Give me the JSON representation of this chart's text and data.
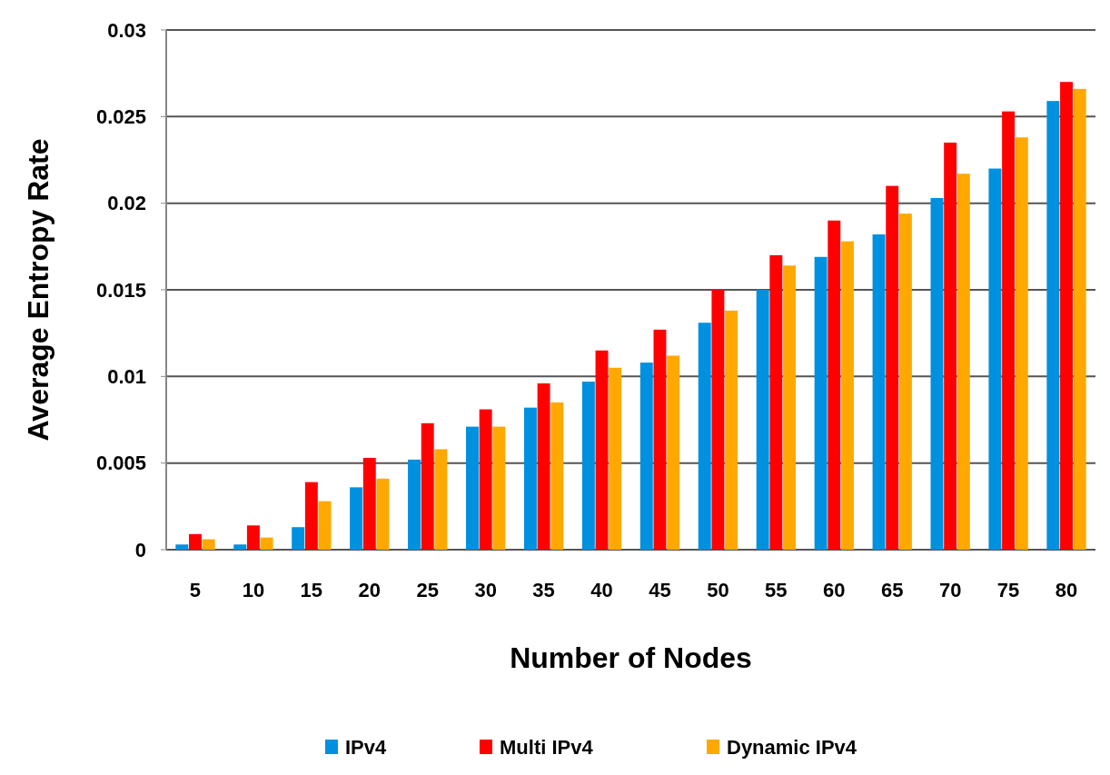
{
  "chart_data": {
    "type": "bar",
    "xlabel": "Number of Nodes",
    "ylabel": "Average Entropy Rate",
    "categories": [
      "5",
      "10",
      "15",
      "20",
      "25",
      "30",
      "35",
      "40",
      "45",
      "50",
      "55",
      "60",
      "65",
      "70",
      "75",
      "80"
    ],
    "series": [
      {
        "name": "IPv4",
        "color": "#0090e0",
        "values": [
          0.0003,
          0.0003,
          0.0013,
          0.0036,
          0.0052,
          0.0071,
          0.0082,
          0.0097,
          0.0108,
          0.0131,
          0.015,
          0.0169,
          0.0182,
          0.0203,
          0.022,
          0.0259
        ]
      },
      {
        "name": "Multi IPv4",
        "color": "#ff0000",
        "values": [
          0.0009,
          0.0014,
          0.0039,
          0.0053,
          0.0073,
          0.0081,
          0.0096,
          0.0115,
          0.0127,
          0.015,
          0.017,
          0.019,
          0.021,
          0.0235,
          0.0253,
          0.027
        ]
      },
      {
        "name": "Dynamic IPv4",
        "color": "#ffa800",
        "values": [
          0.0006,
          0.0007,
          0.0028,
          0.0041,
          0.0058,
          0.0071,
          0.0085,
          0.0105,
          0.0112,
          0.0138,
          0.0164,
          0.0178,
          0.0194,
          0.0217,
          0.0238,
          0.0266
        ]
      }
    ],
    "ylim": [
      0,
      0.03
    ],
    "yticks": [
      0,
      0.005,
      0.01,
      0.015,
      0.02,
      0.025,
      0.03
    ],
    "grid": "y",
    "legend": "bottom"
  }
}
